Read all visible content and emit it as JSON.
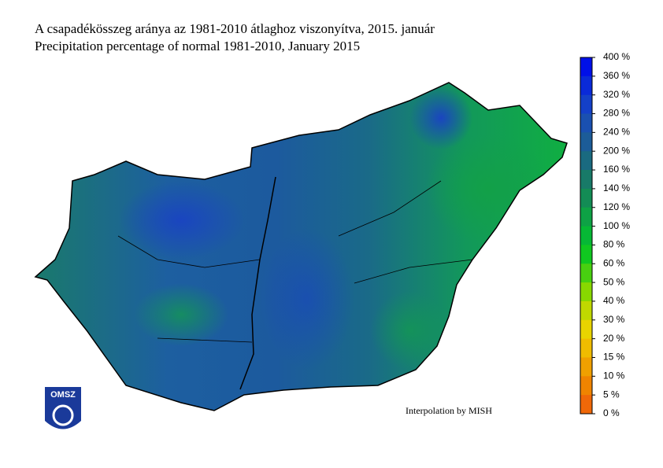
{
  "header": {
    "title_hu": "A csapadékösszeg aránya az 1981-2010 átlaghoz viszonyítva, 2015. január",
    "title_en": "Precipitation percentage of normal 1981-2010, January 2015"
  },
  "legend": {
    "labels": [
      "400 %",
      "360 %",
      "320 %",
      "280 %",
      "240 %",
      "200 %",
      "160 %",
      "140 %",
      "120 %",
      "100 %",
      "80 %",
      "60 %",
      "50 %",
      "40 %",
      "30 %",
      "20 %",
      "15 %",
      "10 %",
      "5 %",
      "0 %"
    ],
    "colors": [
      "#0010e8",
      "#0a2ad8",
      "#1440c8",
      "#1a50b0",
      "#1c5c98",
      "#1a6a80",
      "#187a68",
      "#138c55",
      "#0ea245",
      "#06b835",
      "#10c820",
      "#48d010",
      "#88d800",
      "#c0d800",
      "#e8d400",
      "#f0bc00",
      "#f0a000",
      "#f08400",
      "#f06808"
    ]
  },
  "credit": "Interpolation by MISH",
  "logo": "OMSZ"
}
